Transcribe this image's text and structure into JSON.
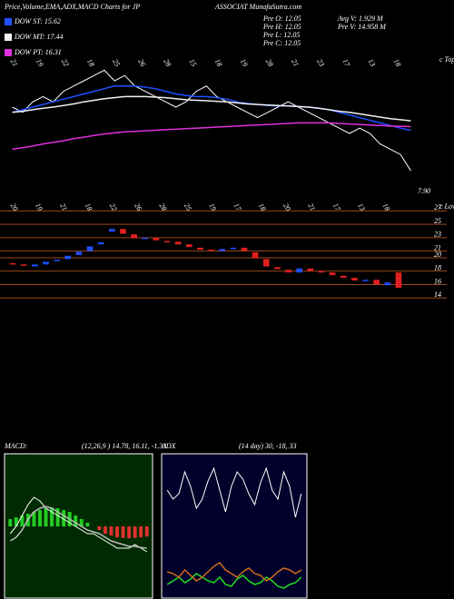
{
  "header": {
    "left": "Price,Volume,EMA,ADX,MACD Charts for JP",
    "right": "ASSOCIAT MunafaSutra.com"
  },
  "chart_data": [
    {
      "type": "line",
      "series": [
        {
          "color": "#ffffff",
          "values": [
            20,
            19,
            21,
            22,
            21,
            23,
            24,
            25,
            26,
            27,
            25,
            26,
            24,
            23,
            22,
            21,
            20,
            21,
            23,
            24,
            22,
            21,
            20,
            19,
            18,
            19,
            20,
            21,
            20,
            19,
            18,
            17,
            16,
            15,
            16,
            15,
            13,
            12,
            11,
            7.9
          ]
        },
        {
          "name": "DOW ST: 15.62",
          "color": "#1f4fff",
          "values": [
            19,
            19.5,
            20,
            20.5,
            21,
            21.5,
            22,
            22.5,
            23,
            23.5,
            24,
            24,
            24,
            23.8,
            23.5,
            23,
            22.5,
            22.2,
            22,
            22,
            21.8,
            21.5,
            21,
            20.7,
            20.5,
            20.3,
            20.2,
            20.2,
            20.1,
            20,
            19.8,
            19.5,
            19,
            18.5,
            18,
            17.5,
            17,
            16.5,
            16,
            15.6
          ]
        },
        {
          "name": "DOW MT: 17.44",
          "color": "#f0f0f0",
          "values": [
            19,
            19.2,
            19.5,
            19.8,
            20,
            20.3,
            20.6,
            21,
            21.3,
            21.6,
            21.8,
            22,
            22,
            22,
            21.9,
            21.8,
            21.6,
            21.4,
            21.3,
            21.2,
            21.1,
            21,
            20.8,
            20.6,
            20.5,
            20.4,
            20.3,
            20.2,
            20.1,
            20,
            19.8,
            19.5,
            19.2,
            19,
            18.7,
            18.4,
            18.1,
            17.8,
            17.6,
            17.4
          ]
        },
        {
          "name": "DOW PT: 16.31",
          "color": "#e030e0",
          "values": [
            12,
            12.3,
            12.6,
            13,
            13.3,
            13.6,
            14,
            14.3,
            14.6,
            14.9,
            15.1,
            15.3,
            15.4,
            15.5,
            15.6,
            15.7,
            15.8,
            15.9,
            16,
            16.1,
            16.2,
            16.3,
            16.4,
            16.5,
            16.6,
            16.7,
            16.8,
            16.9,
            17,
            17,
            17,
            17,
            16.9,
            16.8,
            16.7,
            16.6,
            16.5,
            16.4,
            16.35,
            16.31
          ]
        }
      ],
      "ylim": [
        5,
        30
      ],
      "annotations": [
        "Pre  O: 12.05",
        "Pre  H: 12.05",
        "Pre  L: 12.05",
        "Pre  C: 12.05",
        "Avg  V: 1.929  M",
        "Pre  V: 14.958  M",
        "7.90",
        "c Tope"
      ],
      "date_labels": [
        "21",
        "19",
        "22",
        "18",
        "25",
        "26",
        "28",
        "15",
        "18",
        "19",
        "28",
        "21",
        "23",
        "17",
        "13",
        "18"
      ]
    },
    {
      "type": "candlestick",
      "open": [
        19.2,
        19.0,
        18.7,
        19.0,
        19.5,
        19.8,
        20.4,
        21.0,
        22.0,
        23.9,
        24.3,
        23.5,
        22.8,
        23.0,
        22.5,
        22.4,
        22.0,
        21.5,
        21.2,
        21.0,
        21.3,
        21.5,
        20.8,
        19.8,
        18.6,
        18.2,
        17.8,
        18.4,
        18.0,
        17.8,
        17.3,
        17.0,
        16.5,
        16.7,
        15.9,
        17.8
      ],
      "close": [
        19.0,
        18.8,
        19.0,
        19.4,
        19.7,
        20.3,
        20.9,
        21.7,
        22.3,
        24.3,
        23.6,
        22.9,
        23.0,
        22.6,
        22.4,
        22.0,
        21.6,
        21.2,
        21.0,
        21.3,
        21.5,
        21.0,
        19.9,
        18.7,
        18.3,
        17.8,
        18.4,
        18.0,
        17.8,
        17.4,
        17.0,
        16.6,
        16.7,
        16.0,
        16.3,
        15.5
      ],
      "up_color": "#1f4fff",
      "down_color": "#e02020",
      "ylim": [
        12,
        28
      ],
      "yticks": [
        27,
        25,
        23,
        21,
        20,
        18,
        16,
        14
      ],
      "grid_color": "#9a4a1a",
      "annotations": [
        "c Lower"
      ],
      "date_labels": [
        "20",
        "19",
        "21",
        "18",
        "22",
        "26",
        "28",
        "25",
        "19",
        "17",
        "18",
        "20",
        "21",
        "17",
        "13",
        "18"
      ]
    },
    {
      "type": "macd",
      "title": "MACD:",
      "subtitle": "(12,26,9 ) 14.78, 16.11, -1.33",
      "values": [
        2,
        2.5,
        3,
        3.5,
        4,
        4.5,
        5,
        5.2,
        5,
        4.5,
        4,
        3,
        2,
        1,
        0,
        -1,
        -2,
        -2.5,
        -3,
        -3.2,
        -3.3,
        -3.2,
        -3,
        -2.8
      ],
      "positive_color": "#22cc22",
      "negative_color": "#e03030",
      "background": "#002a00",
      "series": [
        {
          "color": "#ffffff",
          "values": [
            -2,
            0,
            3,
            6,
            8,
            7,
            5,
            4,
            3,
            2,
            1,
            0,
            -1,
            -2,
            -2,
            -3,
            -4,
            -5,
            -6,
            -6,
            -6,
            -5,
            -6,
            -7
          ]
        },
        {
          "color": "#bbbbbb",
          "values": [
            -4,
            -3,
            -1,
            2,
            4,
            5,
            5.5,
            5,
            4,
            3,
            2,
            1,
            0,
            -1,
            -1.5,
            -2,
            -3,
            -4,
            -4.5,
            -5,
            -5.5,
            -5.5,
            -5.8,
            -6
          ]
        }
      ],
      "ylim": [
        -20,
        20
      ]
    },
    {
      "type": "line",
      "title": "ADX",
      "subtitle": "(14 day) 30, -18, 33",
      "background": "#00002a",
      "series": [
        {
          "color": "#ffffff",
          "values": [
            60,
            55,
            58,
            70,
            62,
            50,
            55,
            65,
            72,
            60,
            48,
            62,
            70,
            66,
            58,
            52,
            64,
            72,
            60,
            55,
            70,
            62,
            45,
            58
          ]
        },
        {
          "color": "#22dd22",
          "values": [
            8,
            10,
            12,
            9,
            11,
            14,
            12,
            10,
            9,
            12,
            8,
            7,
            11,
            13,
            10,
            8,
            9,
            12,
            10,
            7,
            6,
            8,
            9,
            12
          ]
        },
        {
          "color": "#d2691e",
          "values": [
            15,
            14,
            12,
            16,
            13,
            10,
            12,
            15,
            18,
            20,
            16,
            14,
            12,
            15,
            17,
            14,
            13,
            10,
            12,
            15,
            17,
            16,
            14,
            16
          ]
        }
      ],
      "ylim": [
        0,
        80
      ]
    }
  ]
}
